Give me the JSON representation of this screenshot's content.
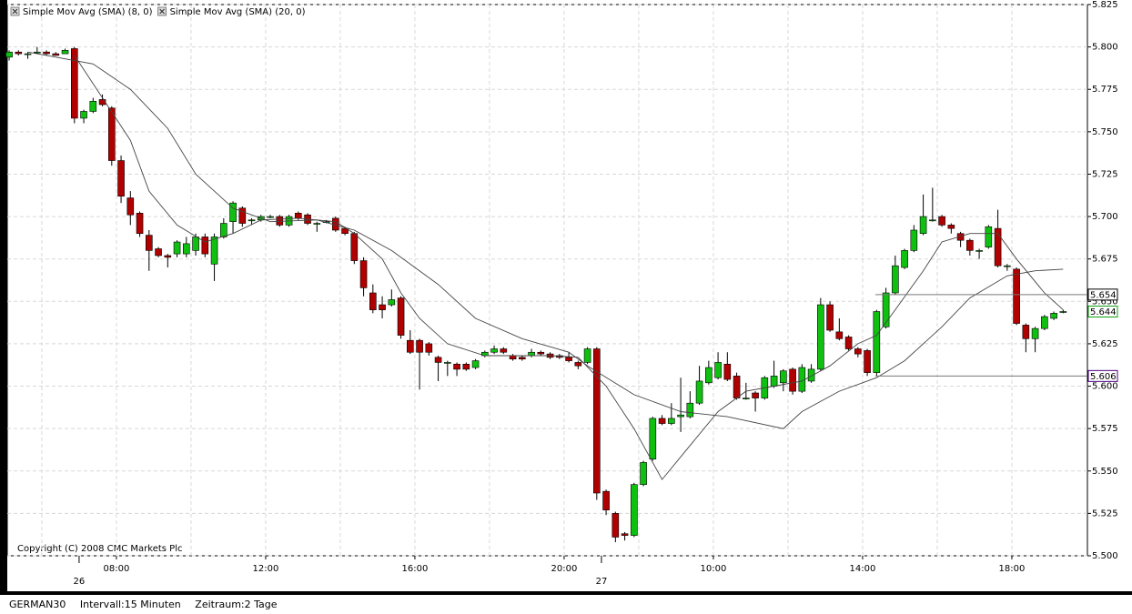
{
  "chart_data": {
    "type": "candlestick",
    "copyright": "Copyright (C) 2008 CMC Markets Plc",
    "up_color": "#10c010",
    "down_color": "#b00000",
    "grid": true,
    "legend": "top-left",
    "xlim": [
      -0.2,
      115.6
    ],
    "ylim": [
      5.5,
      5.825
    ],
    "yticks": [
      {
        "value": 5.5,
        "label": "5.500"
      },
      5.525,
      {
        "value": 5.55,
        "label": "5.550"
      },
      5.575,
      {
        "value": 5.6,
        "label": "5.600"
      },
      5.625,
      {
        "value": 5.65,
        "label": "5.650"
      },
      5.675,
      {
        "value": 5.7,
        "label": "5.700"
      },
      5.725,
      {
        "value": 5.75,
        "label": "5.750"
      },
      5.775,
      {
        "value": 5.8,
        "label": "5.800"
      },
      5.825
    ],
    "xticks": [
      {
        "value": 11.5,
        "label": "08:00"
      },
      {
        "value": 27.5,
        "label": "12:00"
      },
      {
        "value": 43.5,
        "label": "16:00"
      },
      {
        "value": 59.5,
        "label": "20:00"
      },
      {
        "value": 75.5,
        "label": "10:00"
      },
      {
        "value": 91.5,
        "label": "14:00"
      },
      {
        "value": 107.5,
        "label": "18:00"
      }
    ],
    "xdates": [
      {
        "value": 7.5,
        "label": "26"
      },
      {
        "value": 63.5,
        "label": "27"
      }
    ],
    "xgrid_minor": [
      3.5,
      19.5,
      35.5,
      51.5,
      67.5,
      83.5,
      99.5
    ],
    "candles": [
      [
        5.794,
        5.798,
        5.792,
        5.797
      ],
      [
        5.797,
        5.798,
        5.795,
        5.796
      ],
      [
        5.796,
        5.797,
        5.793,
        5.796
      ],
      [
        5.797,
        5.8,
        5.796,
        5.797
      ],
      [
        5.797,
        5.798,
        5.795,
        5.796
      ],
      [
        5.796,
        5.797,
        5.795,
        5.795
      ],
      [
        5.796,
        5.799,
        5.796,
        5.798
      ],
      [
        5.799,
        5.8,
        5.755,
        5.758
      ],
      [
        5.758,
        5.763,
        5.755,
        5.762
      ],
      [
        5.762,
        5.77,
        5.761,
        5.768
      ],
      [
        5.769,
        5.772,
        5.765,
        5.766
      ],
      [
        5.764,
        5.765,
        5.73,
        5.733
      ],
      [
        5.733,
        5.736,
        5.708,
        5.712
      ],
      [
        5.711,
        5.715,
        5.695,
        5.701
      ],
      [
        5.702,
        5.703,
        5.688,
        5.69
      ],
      [
        5.689,
        5.692,
        5.668,
        5.68
      ],
      [
        5.681,
        5.682,
        5.676,
        5.677
      ],
      [
        5.677,
        5.678,
        5.67,
        5.676
      ],
      [
        5.678,
        5.686,
        5.676,
        5.685
      ],
      [
        5.678,
        5.688,
        5.676,
        5.684
      ],
      [
        5.68,
        5.69,
        5.677,
        5.688
      ],
      [
        5.688,
        5.69,
        5.676,
        5.678
      ],
      [
        5.672,
        5.69,
        5.662,
        5.688
      ],
      [
        5.688,
        5.699,
        5.687,
        5.696
      ],
      [
        5.697,
        5.709,
        5.69,
        5.708
      ],
      [
        5.705,
        5.706,
        5.694,
        5.696
      ],
      [
        5.698,
        5.699,
        5.695,
        5.698
      ],
      [
        5.698,
        5.701,
        5.697,
        5.7
      ],
      [
        5.7,
        5.701,
        5.699,
        5.7
      ],
      [
        5.7,
        5.701,
        5.694,
        5.695
      ],
      [
        5.695,
        5.701,
        5.694,
        5.7
      ],
      [
        5.702,
        5.703,
        5.698,
        5.699
      ],
      [
        5.701,
        5.702,
        5.695,
        5.696
      ],
      [
        5.696,
        5.697,
        5.691,
        5.696
      ],
      [
        5.697,
        5.698,
        5.696,
        5.697
      ],
      [
        5.699,
        5.7,
        5.691,
        5.692
      ],
      [
        5.693,
        5.694,
        5.689,
        5.69
      ],
      [
        5.69,
        5.691,
        5.672,
        5.674
      ],
      [
        5.674,
        5.676,
        5.653,
        5.658
      ],
      [
        5.655,
        5.66,
        5.643,
        5.645
      ],
      [
        5.648,
        5.653,
        5.64,
        5.645
      ],
      [
        5.648,
        5.657,
        5.647,
        5.651
      ],
      [
        5.652,
        5.653,
        5.628,
        5.63
      ],
      [
        5.627,
        5.633,
        5.619,
        5.62
      ],
      [
        5.627,
        5.628,
        5.598,
        5.62
      ],
      [
        5.625,
        5.626,
        5.618,
        5.62
      ],
      [
        5.617,
        5.618,
        5.603,
        5.614
      ],
      [
        5.614,
        5.615,
        5.606,
        5.614
      ],
      [
        5.613,
        5.614,
        5.606,
        5.61
      ],
      [
        5.613,
        5.614,
        5.609,
        5.61
      ],
      [
        5.611,
        5.616,
        5.61,
        5.615
      ],
      [
        5.618,
        5.621,
        5.617,
        5.62
      ],
      [
        5.62,
        5.624,
        5.619,
        5.622
      ],
      [
        5.622,
        5.623,
        5.619,
        5.62
      ],
      [
        5.618,
        5.619,
        5.615,
        5.616
      ],
      [
        5.617,
        5.618,
        5.615,
        5.616
      ],
      [
        5.618,
        5.622,
        5.617,
        5.62
      ],
      [
        5.62,
        5.621,
        5.618,
        5.619
      ],
      [
        5.619,
        5.62,
        5.616,
        5.617
      ],
      [
        5.618,
        5.619,
        5.616,
        5.617
      ],
      [
        5.617,
        5.62,
        5.614,
        5.615
      ],
      [
        5.614,
        5.615,
        5.61,
        5.612
      ],
      [
        5.614,
        5.623,
        5.613,
        5.622
      ],
      [
        5.622,
        5.623,
        5.533,
        5.537
      ],
      [
        5.538,
        5.539,
        5.524,
        5.527
      ],
      [
        5.525,
        5.526,
        5.508,
        5.511
      ],
      [
        5.513,
        5.514,
        5.509,
        5.512
      ],
      [
        5.512,
        5.543,
        5.511,
        5.542
      ],
      [
        5.542,
        5.556,
        5.541,
        5.555
      ],
      [
        5.557,
        5.582,
        5.556,
        5.581
      ],
      [
        5.581,
        5.583,
        5.577,
        5.578
      ],
      [
        5.578,
        5.59,
        5.577,
        5.581
      ],
      [
        5.582,
        5.605,
        5.573,
        5.583
      ],
      [
        5.582,
        5.597,
        5.581,
        5.59
      ],
      [
        5.59,
        5.612,
        5.589,
        5.603
      ],
      [
        5.602,
        5.615,
        5.601,
        5.611
      ],
      [
        5.605,
        5.62,
        5.604,
        5.614
      ],
      [
        5.613,
        5.62,
        5.603,
        5.604
      ],
      [
        5.606,
        5.608,
        5.592,
        5.593
      ],
      [
        5.593,
        5.602,
        5.592,
        5.593
      ],
      [
        5.596,
        5.597,
        5.585,
        5.593
      ],
      [
        5.593,
        5.606,
        5.592,
        5.605
      ],
      [
        5.6,
        5.615,
        5.599,
        5.606
      ],
      [
        5.602,
        5.61,
        5.597,
        5.609
      ],
      [
        5.61,
        5.611,
        5.595,
        5.597
      ],
      [
        5.597,
        5.613,
        5.596,
        5.611
      ],
      [
        5.603,
        5.613,
        5.602,
        5.61
      ],
      [
        5.61,
        5.652,
        5.609,
        5.648
      ],
      [
        5.648,
        5.65,
        5.632,
        5.633
      ],
      [
        5.632,
        5.64,
        5.627,
        5.628
      ],
      [
        5.629,
        5.63,
        5.621,
        5.622
      ],
      [
        5.622,
        5.623,
        5.617,
        5.619
      ],
      [
        5.621,
        5.622,
        5.606,
        5.608
      ],
      [
        5.608,
        5.645,
        5.606,
        5.644
      ],
      [
        5.635,
        5.658,
        5.634,
        5.655
      ],
      [
        5.655,
        5.677,
        5.654,
        5.671
      ],
      [
        5.67,
        5.681,
        5.669,
        5.68
      ],
      [
        5.68,
        5.695,
        5.679,
        5.692
      ],
      [
        5.69,
        5.713,
        5.689,
        5.7
      ],
      [
        5.698,
        5.717,
        5.697,
        5.698
      ],
      [
        5.7,
        5.701,
        5.694,
        5.695
      ],
      [
        5.695,
        5.696,
        5.69,
        5.693
      ],
      [
        5.69,
        5.691,
        5.682,
        5.686
      ],
      [
        5.686,
        5.687,
        5.677,
        5.68
      ],
      [
        5.68,
        5.681,
        5.675,
        5.68
      ],
      [
        5.682,
        5.695,
        5.681,
        5.694
      ],
      [
        5.693,
        5.704,
        5.67,
        5.671
      ],
      [
        5.671,
        5.672,
        5.668,
        5.671
      ],
      [
        5.669,
        5.67,
        5.636,
        5.637
      ],
      [
        5.636,
        5.637,
        5.62,
        5.628
      ],
      [
        5.628,
        5.635,
        5.62,
        5.634
      ],
      [
        5.634,
        5.642,
        5.633,
        5.641
      ],
      [
        5.64,
        5.644,
        5.639,
        5.643
      ],
      [
        5.644,
        5.645,
        5.643,
        5.644
      ]
    ],
    "series": [
      {
        "name": "Simple Mov Avg (SMA) (8, 0)",
        "color": "#444444",
        "x": [
          7,
          10,
          13,
          15,
          18,
          21,
          24,
          27,
          31,
          35,
          37,
          40,
          42,
          44,
          47,
          51,
          58,
          61,
          64,
          67,
          70,
          73,
          76,
          79,
          82,
          85,
          88,
          91,
          93,
          95,
          98,
          100,
          103,
          106,
          108,
          111,
          113
        ],
        "values": [
          5.795,
          5.77,
          5.745,
          5.715,
          5.695,
          5.685,
          5.69,
          5.698,
          5.699,
          5.697,
          5.69,
          5.675,
          5.655,
          5.64,
          5.625,
          5.618,
          5.618,
          5.617,
          5.6,
          5.575,
          5.545,
          5.565,
          5.585,
          5.597,
          5.6,
          5.603,
          5.612,
          5.625,
          5.63,
          5.645,
          5.668,
          5.685,
          5.69,
          5.69,
          5.675,
          5.655,
          5.645
        ]
      },
      {
        "name": "Simple Mov Avg (SMA) (20, 0)",
        "color": "#444444",
        "x": [
          2,
          9,
          13,
          17,
          20,
          24,
          28,
          33,
          37,
          41,
          46,
          50,
          55,
          60,
          62,
          67,
          72,
          77,
          83,
          85,
          89,
          93,
          96,
          100,
          103,
          107,
          110,
          113
        ],
        "values": [
          5.797,
          5.79,
          5.775,
          5.752,
          5.725,
          5.705,
          5.697,
          5.698,
          5.692,
          5.68,
          5.66,
          5.64,
          5.628,
          5.62,
          5.612,
          5.595,
          5.585,
          5.582,
          5.575,
          5.585,
          5.597,
          5.605,
          5.615,
          5.635,
          5.652,
          5.665,
          5.668,
          5.669
        ]
      }
    ],
    "price_labels": [
      {
        "value": 5.654,
        "color": "#000000",
        "line": true
      },
      {
        "value": 5.644,
        "color": "#10a010",
        "line": false
      },
      {
        "value": 5.606,
        "color": "#4b0082",
        "line": true
      }
    ],
    "footer": {
      "instrument": "GERMAN30",
      "interval": "Intervall:15 Minuten",
      "range": "Zeitraum:2 Tage"
    }
  }
}
